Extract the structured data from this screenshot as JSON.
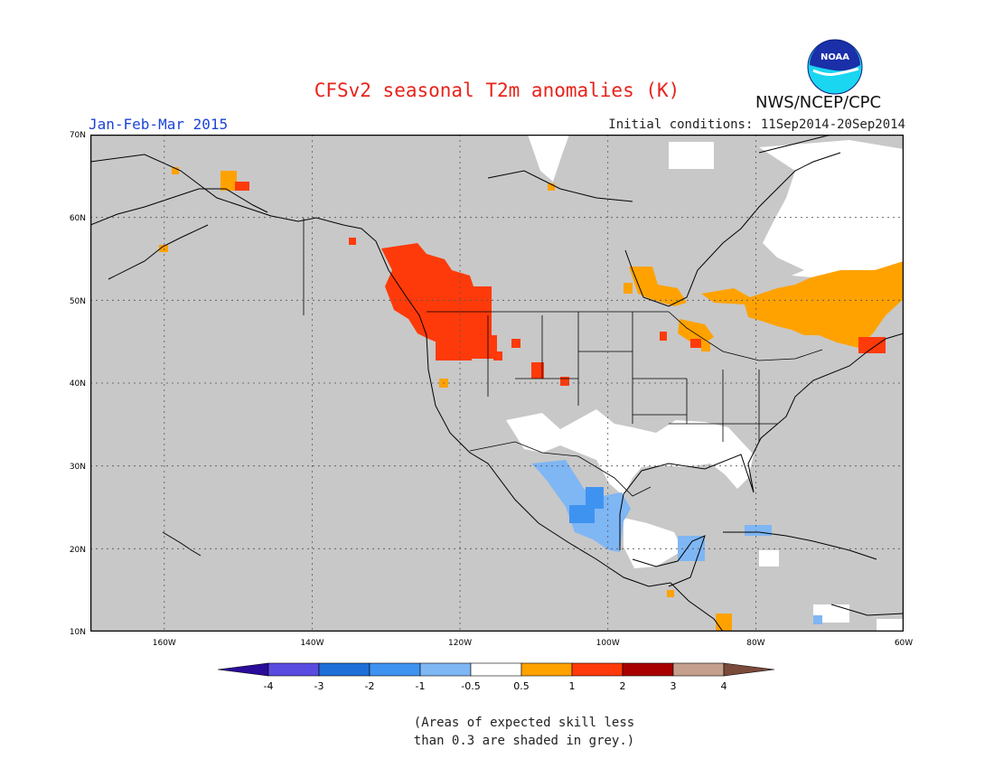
{
  "header": {
    "title": "CFSv2 seasonal T2m anomalies (K)",
    "period": "Jan-Feb-Mar 2015",
    "initial_conditions": "Initial conditions: 11Sep2014-20Sep2014",
    "agency": "NWS/NCEP/CPC",
    "logo_text": "NOAA"
  },
  "map": {
    "region": "North America",
    "lon_range": [
      "170W",
      "60W"
    ],
    "lat_range": [
      "10N",
      "70N"
    ],
    "lat_labels": [
      "70N",
      "60N",
      "50N",
      "40N",
      "30N",
      "20N",
      "10N"
    ],
    "lon_labels": [
      "160W",
      "140W",
      "120W",
      "100W",
      "80W",
      "60W"
    ],
    "background_color": "#c8c8c8",
    "grid": "dotted"
  },
  "colorbar": {
    "labels": [
      "-4",
      "-3",
      "-2",
      "-1",
      "-0.5",
      "0.5",
      "1",
      "2",
      "3",
      "4"
    ],
    "colors": [
      "#2a0c9a",
      "#5a4be0",
      "#1e6fd8",
      "#3f93f0",
      "#7fb6f4",
      "#ffffff",
      "#ffa200",
      "#ff3a0a",
      "#a80000",
      "#c6a08e",
      "#7a4a3a"
    ]
  },
  "note": {
    "line1": "(Areas of expected skill less",
    "line2": "than 0.3 are shaded in grey.)"
  }
}
